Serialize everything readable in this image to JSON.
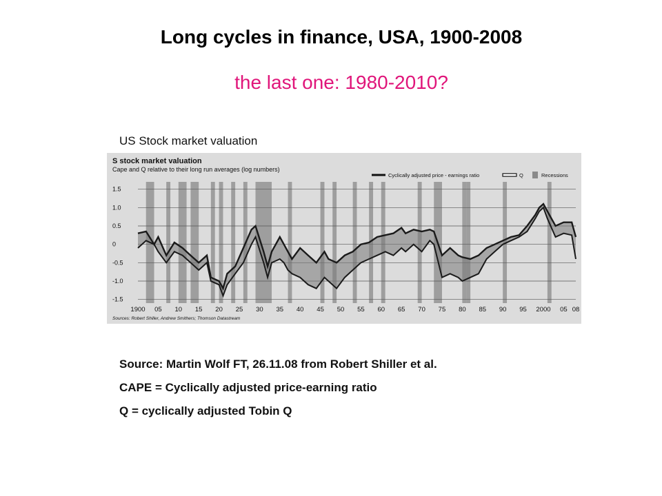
{
  "slide": {
    "title": "Long cycles in finance, USA, 1900-2008",
    "subtitle": "the last one: 1980-2010?",
    "chart_caption": "US Stock market valuation",
    "notes": [
      "Source: Martin Wolf FT, 26.11.08 from Robert Shiller et al.",
      "CAPE = Cyclically adjusted price-earning ratio",
      "Q = cyclically adjusted Tobin Q"
    ]
  },
  "colors": {
    "title": "#000000",
    "subtitle": "#e0157a",
    "scan_bg": "#dcdcdc",
    "line": "#1a1a1a",
    "fill": "#7a7a7a",
    "recession": "#8a8a8a"
  },
  "chart_data": {
    "type": "line",
    "title": "S stock market valuation",
    "subtitle": "Cape and Q relative to their long run averages (log numbers)",
    "source": "Sources: Robert Shiller, Andrew Smithers; Thomson Datastream",
    "legend": [
      "Cyclically adjusted price - earnings ratio",
      "Q",
      "Recessions"
    ],
    "legend_position": "top-right",
    "ylim": [
      -1.6,
      1.7
    ],
    "y_ticks": [
      1.5,
      1.0,
      0.5,
      0,
      -0.5,
      -1.0,
      -1.5
    ],
    "y_tick_labels": [
      "1.5",
      "1.0",
      "0.5",
      "0",
      "-0.5",
      "-1.0",
      "-1.5"
    ],
    "x_ticks": [
      1900,
      1905,
      1910,
      1915,
      1920,
      1925,
      1930,
      1935,
      1940,
      1945,
      1950,
      1955,
      1960,
      1965,
      1970,
      1975,
      1980,
      1985,
      1990,
      1995,
      2000,
      2005,
      2008
    ],
    "x_tick_labels": [
      "1900",
      "05",
      "10",
      "15",
      "20",
      "25",
      "30",
      "35",
      "40",
      "45",
      "50",
      "55",
      "60",
      "65",
      "70",
      "75",
      "80",
      "85",
      "90",
      "95",
      "2000",
      "05",
      "08"
    ],
    "grid": true,
    "recessions": [
      [
        1902,
        1904
      ],
      [
        1907,
        1908
      ],
      [
        1910,
        1912
      ],
      [
        1913,
        1915
      ],
      [
        1918,
        1919
      ],
      [
        1920,
        1921
      ],
      [
        1923,
        1924
      ],
      [
        1926,
        1927
      ],
      [
        1929,
        1933
      ],
      [
        1937,
        1938
      ],
      [
        1945,
        1946
      ],
      [
        1948,
        1949
      ],
      [
        1953,
        1954
      ],
      [
        1957,
        1958
      ],
      [
        1960,
        1961
      ],
      [
        1969,
        1970
      ],
      [
        1973,
        1975
      ],
      [
        1980,
        1981
      ],
      [
        1981,
        1982
      ],
      [
        1990,
        1991
      ],
      [
        2001,
        2002
      ]
    ],
    "series": [
      {
        "name": "Cyclically adjusted price - earnings ratio",
        "x": [
          1900,
          1902,
          1904,
          1905,
          1907,
          1909,
          1911,
          1913,
          1915,
          1917,
          1918,
          1920,
          1921,
          1922,
          1924,
          1926,
          1928,
          1929,
          1931,
          1932,
          1933,
          1935,
          1936,
          1937,
          1938,
          1940,
          1942,
          1944,
          1946,
          1947,
          1949,
          1951,
          1953,
          1955,
          1957,
          1959,
          1961,
          1963,
          1965,
          1966,
          1968,
          1970,
          1972,
          1973,
          1975,
          1977,
          1979,
          1980,
          1982,
          1984,
          1986,
          1988,
          1990,
          1992,
          1994,
          1996,
          1998,
          1999,
          2000,
          2001,
          2003,
          2005,
          2007,
          2008
        ],
        "values": [
          0.3,
          0.35,
          0.0,
          0.2,
          -0.3,
          0.05,
          -0.1,
          -0.3,
          -0.5,
          -0.3,
          -0.9,
          -1.0,
          -1.2,
          -0.8,
          -0.6,
          -0.1,
          0.4,
          0.5,
          -0.2,
          -0.6,
          -0.2,
          0.2,
          0.0,
          -0.2,
          -0.4,
          -0.1,
          -0.3,
          -0.5,
          -0.2,
          -0.4,
          -0.5,
          -0.3,
          -0.2,
          0.0,
          0.05,
          0.2,
          0.25,
          0.3,
          0.45,
          0.3,
          0.4,
          0.35,
          0.4,
          0.35,
          -0.3,
          -0.1,
          -0.3,
          -0.35,
          -0.4,
          -0.3,
          -0.1,
          0.0,
          0.1,
          0.2,
          0.25,
          0.5,
          0.8,
          1.0,
          1.1,
          0.9,
          0.5,
          0.6,
          0.6,
          0.2
        ]
      },
      {
        "name": "Q",
        "x": [
          1900,
          1902,
          1904,
          1905,
          1907,
          1909,
          1911,
          1913,
          1915,
          1917,
          1918,
          1920,
          1921,
          1922,
          1924,
          1926,
          1928,
          1929,
          1931,
          1932,
          1933,
          1935,
          1936,
          1937,
          1938,
          1940,
          1942,
          1944,
          1946,
          1947,
          1949,
          1951,
          1953,
          1955,
          1957,
          1959,
          1961,
          1963,
          1965,
          1966,
          1968,
          1970,
          1972,
          1973,
          1975,
          1977,
          1979,
          1980,
          1982,
          1984,
          1986,
          1988,
          1990,
          1992,
          1994,
          1996,
          1998,
          1999,
          2000,
          2001,
          2003,
          2005,
          2007,
          2008
        ],
        "values": [
          -0.1,
          0.1,
          0.0,
          -0.2,
          -0.5,
          -0.2,
          -0.3,
          -0.5,
          -0.7,
          -0.5,
          -1.0,
          -1.1,
          -1.4,
          -1.1,
          -0.8,
          -0.5,
          0.0,
          0.2,
          -0.5,
          -0.9,
          -0.5,
          -0.4,
          -0.5,
          -0.7,
          -0.8,
          -0.9,
          -1.1,
          -1.2,
          -0.9,
          -1.0,
          -1.2,
          -0.9,
          -0.7,
          -0.5,
          -0.4,
          -0.3,
          -0.2,
          -0.3,
          -0.1,
          -0.2,
          0.0,
          -0.2,
          0.1,
          0.0,
          -0.9,
          -0.8,
          -0.9,
          -1.0,
          -0.9,
          -0.8,
          -0.4,
          -0.2,
          0.0,
          0.1,
          0.2,
          0.35,
          0.7,
          0.9,
          1.0,
          0.7,
          0.2,
          0.3,
          0.25,
          -0.4
        ]
      }
    ]
  }
}
